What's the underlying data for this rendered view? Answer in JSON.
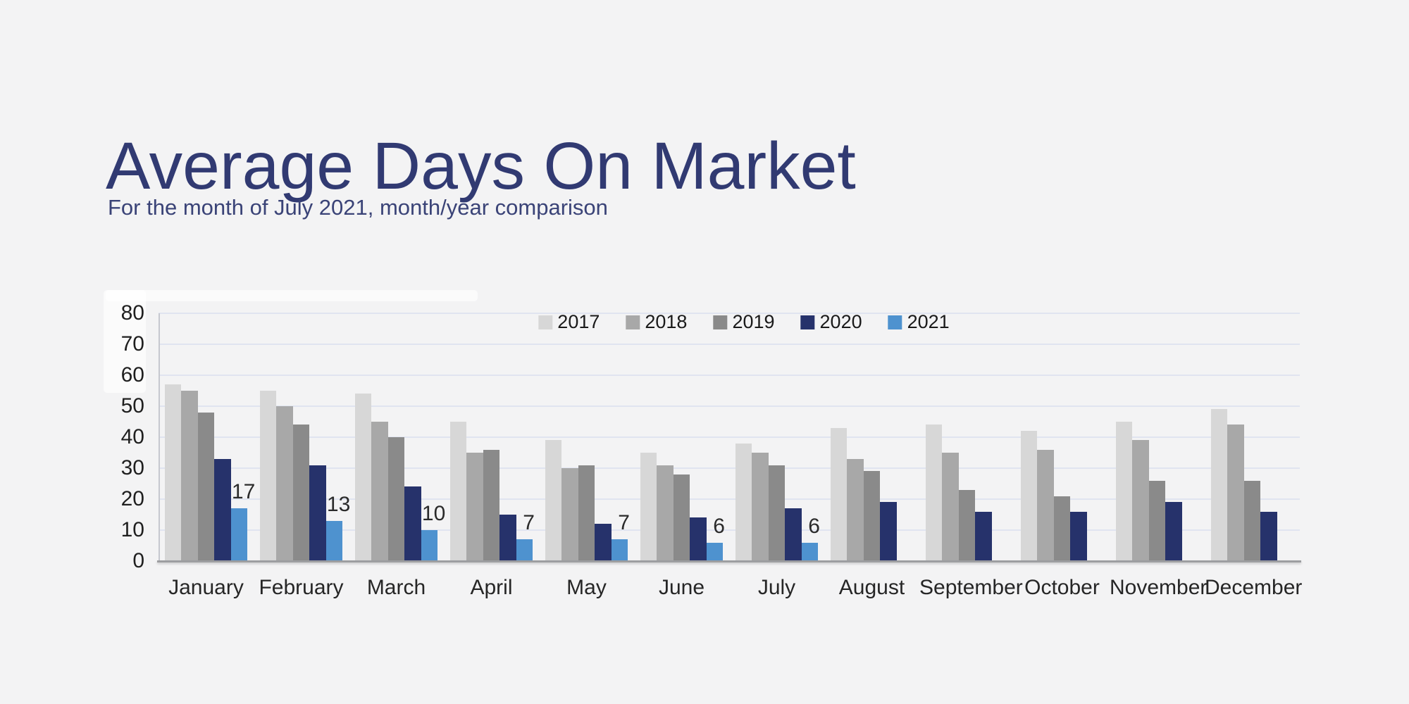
{
  "page": {
    "background": "#f3f3f4",
    "title": "Average Days On Market",
    "subtitle": "For the month of July 2021, month/year comparison",
    "title_color": "#313a72",
    "subtitle_color": "#3a4377"
  },
  "chart_data": {
    "type": "bar",
    "title": "Average Days On Market",
    "xlabel": "",
    "ylabel": "",
    "ylim": [
      0,
      80
    ],
    "yticks": [
      0,
      10,
      20,
      30,
      40,
      50,
      60,
      70,
      80
    ],
    "grid": "horizontal",
    "legend_position": "top-center",
    "categories": [
      "January",
      "February",
      "March",
      "April",
      "May",
      "June",
      "July",
      "August",
      "September",
      "October",
      "November",
      "December"
    ],
    "series": [
      {
        "name": "2017",
        "color": "#d7d7d7",
        "data_labels": false,
        "values": [
          57,
          55,
          54,
          45,
          39,
          35,
          38,
          43,
          44,
          42,
          45,
          49
        ]
      },
      {
        "name": "2018",
        "color": "#a8a8a8",
        "data_labels": false,
        "values": [
          55,
          50,
          45,
          35,
          30,
          31,
          35,
          33,
          35,
          36,
          39,
          44
        ]
      },
      {
        "name": "2019",
        "color": "#8a8a8a",
        "data_labels": false,
        "values": [
          48,
          44,
          40,
          36,
          31,
          28,
          31,
          29,
          23,
          21,
          26,
          26
        ]
      },
      {
        "name": "2020",
        "color": "#26326b",
        "data_labels": false,
        "values": [
          33,
          31,
          24,
          15,
          12,
          14,
          17,
          19,
          16,
          16,
          19,
          16
        ]
      },
      {
        "name": "2021",
        "color": "#4e92cf",
        "data_labels": true,
        "values": [
          17,
          13,
          10,
          7,
          7,
          6,
          6,
          null,
          null,
          null,
          null,
          null
        ]
      }
    ]
  }
}
